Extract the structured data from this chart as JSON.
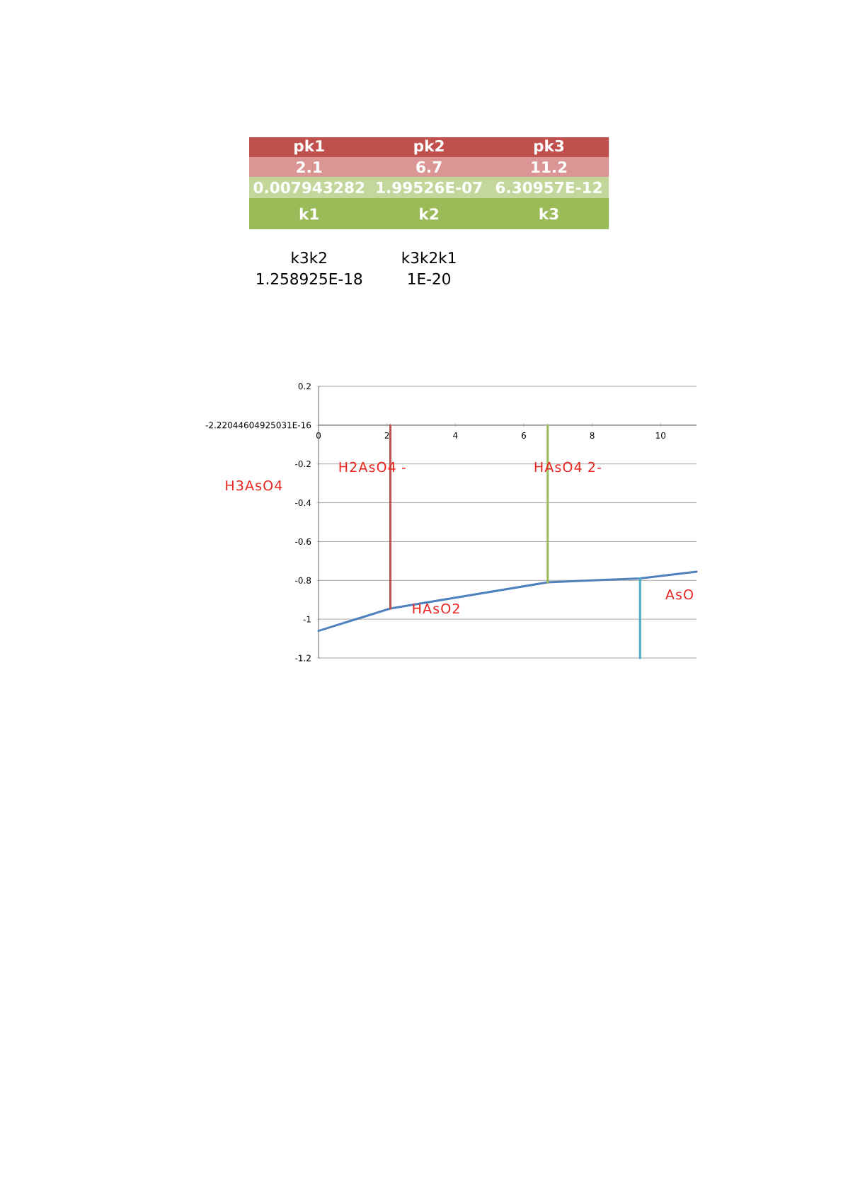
{
  "chart_data": [
    {
      "type": "other",
      "colors": [
        "#c0504d",
        "#d99694",
        "#c3d69b",
        "#9bbb59"
      ],
      "annotations": [
        "pk1",
        "pk2",
        "pk3",
        "2.1",
        "6.7",
        "11.2",
        "0.007943282",
        "1.99526E-07",
        "6.30957E-12",
        "k1",
        "k2",
        "k3",
        "k3k2",
        "k3k2k1",
        "1.258925E-18",
        "1E-20"
      ]
    },
    {
      "type": "line",
      "xlim": [
        0,
        11.05
      ],
      "ylim": [
        -1.2,
        0.2
      ],
      "xticks": [
        0,
        2,
        4,
        6,
        8,
        10
      ],
      "yticks": [
        -1.2,
        -1,
        -0.8,
        -0.6,
        -0.4,
        -0.2,
        {
          "value": 0,
          "label": "-2.22044604925031E-16"
        },
        0.2
      ],
      "grid": "y",
      "series": [
        {
          "color": "#4f81bd",
          "x": [
            0,
            2.1,
            6.7,
            8,
            9.4,
            11.05
          ],
          "values": [
            -1.06,
            -0.945,
            -0.81,
            -0.8,
            -0.79,
            -0.755
          ]
        },
        {
          "color": "#c0504d",
          "x": [
            2.1,
            2.1
          ],
          "values": [
            0,
            -0.945
          ]
        },
        {
          "color": "#9bbb59",
          "x": [
            6.7,
            6.7
          ],
          "values": [
            0,
            -0.81
          ]
        },
        {
          "color": "#4bacc6",
          "x": [
            9.4,
            9.4
          ],
          "values": [
            -0.79,
            -1.2
          ]
        }
      ],
      "annotations": [
        "H3AsO4",
        "H2AsO4 -",
        "HAsO4 2-",
        "HAsO2",
        "AsO"
      ]
    }
  ]
}
